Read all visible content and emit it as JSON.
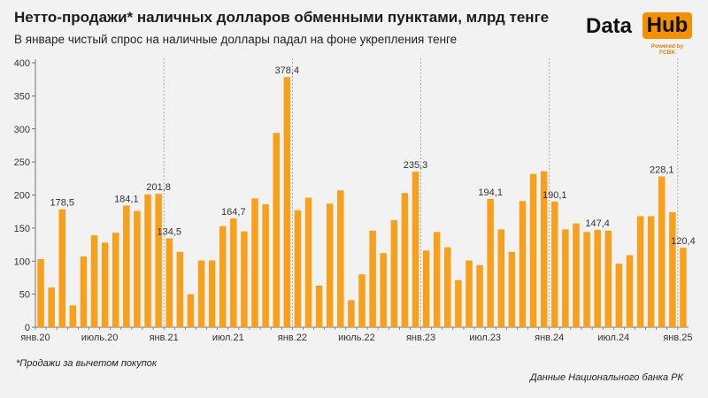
{
  "title": "Нетто-продажи* наличных долларов обменными пунктами, млрд тенге",
  "subtitle": "В январе чистый спрос на наличные доллары падал на фоне укрепления тенге",
  "logo": {
    "word1": "Data",
    "word2": "Hub",
    "powered": "Powered by FCBK"
  },
  "footnote": "*Продажи за вычетом покупок",
  "source": "Данные Национального банка РК",
  "colors": {
    "bar": "#f7a01c",
    "axis": "#555555",
    "grid_divider": "#999999",
    "background": "#f2f2f2"
  },
  "chart_data": {
    "type": "bar",
    "ylim": [
      0,
      400
    ],
    "yticks": [
      0,
      50,
      100,
      150,
      200,
      250,
      300,
      350,
      400
    ],
    "x": [
      "2020-01",
      "2020-02",
      "2020-03",
      "2020-04",
      "2020-05",
      "2020-06",
      "2020-07",
      "2020-08",
      "2020-09",
      "2020-10",
      "2020-11",
      "2020-12",
      "2021-01",
      "2021-02",
      "2021-03",
      "2021-04",
      "2021-05",
      "2021-06",
      "2021-07",
      "2021-08",
      "2021-09",
      "2021-10",
      "2021-11",
      "2021-12",
      "2022-01",
      "2022-02",
      "2022-03",
      "2022-04",
      "2022-05",
      "2022-06",
      "2022-07",
      "2022-08",
      "2022-09",
      "2022-10",
      "2022-11",
      "2022-12",
      "2023-01",
      "2023-02",
      "2023-03",
      "2023-04",
      "2023-05",
      "2023-06",
      "2023-07",
      "2023-08",
      "2023-09",
      "2023-10",
      "2023-11",
      "2023-12",
      "2024-01",
      "2024-02",
      "2024-03",
      "2024-04",
      "2024-05",
      "2024-06",
      "2024-07",
      "2024-08",
      "2024-09",
      "2024-10",
      "2024-11",
      "2024-12",
      "2025-01"
    ],
    "values": [
      103,
      60,
      178.5,
      33,
      107,
      139,
      128,
      143,
      184.1,
      176,
      201,
      201.8,
      134.5,
      114,
      50,
      101,
      101,
      153,
      164.7,
      145,
      195,
      186,
      294,
      378.4,
      177,
      196,
      63,
      187,
      207,
      41,
      80,
      146,
      112,
      162,
      203,
      235.3,
      116,
      144,
      121,
      71,
      101,
      94,
      194.1,
      148,
      114,
      191,
      232,
      236,
      190.1,
      148,
      157,
      144,
      147.4,
      146,
      96,
      109,
      168,
      168,
      228.1,
      174,
      120.4
    ],
    "data_labels": [
      {
        "x": "2020-03",
        "text": "178,5"
      },
      {
        "x": "2020-09",
        "text": "184,1"
      },
      {
        "x": "2020-12",
        "text": "201,8"
      },
      {
        "x": "2021-01",
        "text": "134,5"
      },
      {
        "x": "2021-07",
        "text": "164,7"
      },
      {
        "x": "2021-12",
        "text": "378,4"
      },
      {
        "x": "2022-12",
        "text": "235,3"
      },
      {
        "x": "2023-07",
        "text": "194,1"
      },
      {
        "x": "2024-01",
        "text": "190,1"
      },
      {
        "x": "2024-05",
        "text": "147,4"
      },
      {
        "x": "2024-11",
        "text": "228,1"
      },
      {
        "x": "2025-01",
        "text": "120,4"
      }
    ],
    "xtick_labels": [
      {
        "x": "2020-01",
        "text": "янв.20"
      },
      {
        "x": "2020-07",
        "text": "июль.20"
      },
      {
        "x": "2021-01",
        "text": "янв.21"
      },
      {
        "x": "2021-07",
        "text": "июл.21"
      },
      {
        "x": "2022-01",
        "text": "янв.22"
      },
      {
        "x": "2022-07",
        "text": "июль.22"
      },
      {
        "x": "2023-01",
        "text": "янв.23"
      },
      {
        "x": "2023-07",
        "text": "июл.23"
      },
      {
        "x": "2024-01",
        "text": "янв.24"
      },
      {
        "x": "2024-07",
        "text": "июл.24"
      },
      {
        "x": "2025-01",
        "text": "янв.25"
      }
    ],
    "year_dividers": [
      "2021-01",
      "2022-01",
      "2023-01",
      "2024-01",
      "2025-01"
    ],
    "grid": false,
    "legend": "none"
  }
}
